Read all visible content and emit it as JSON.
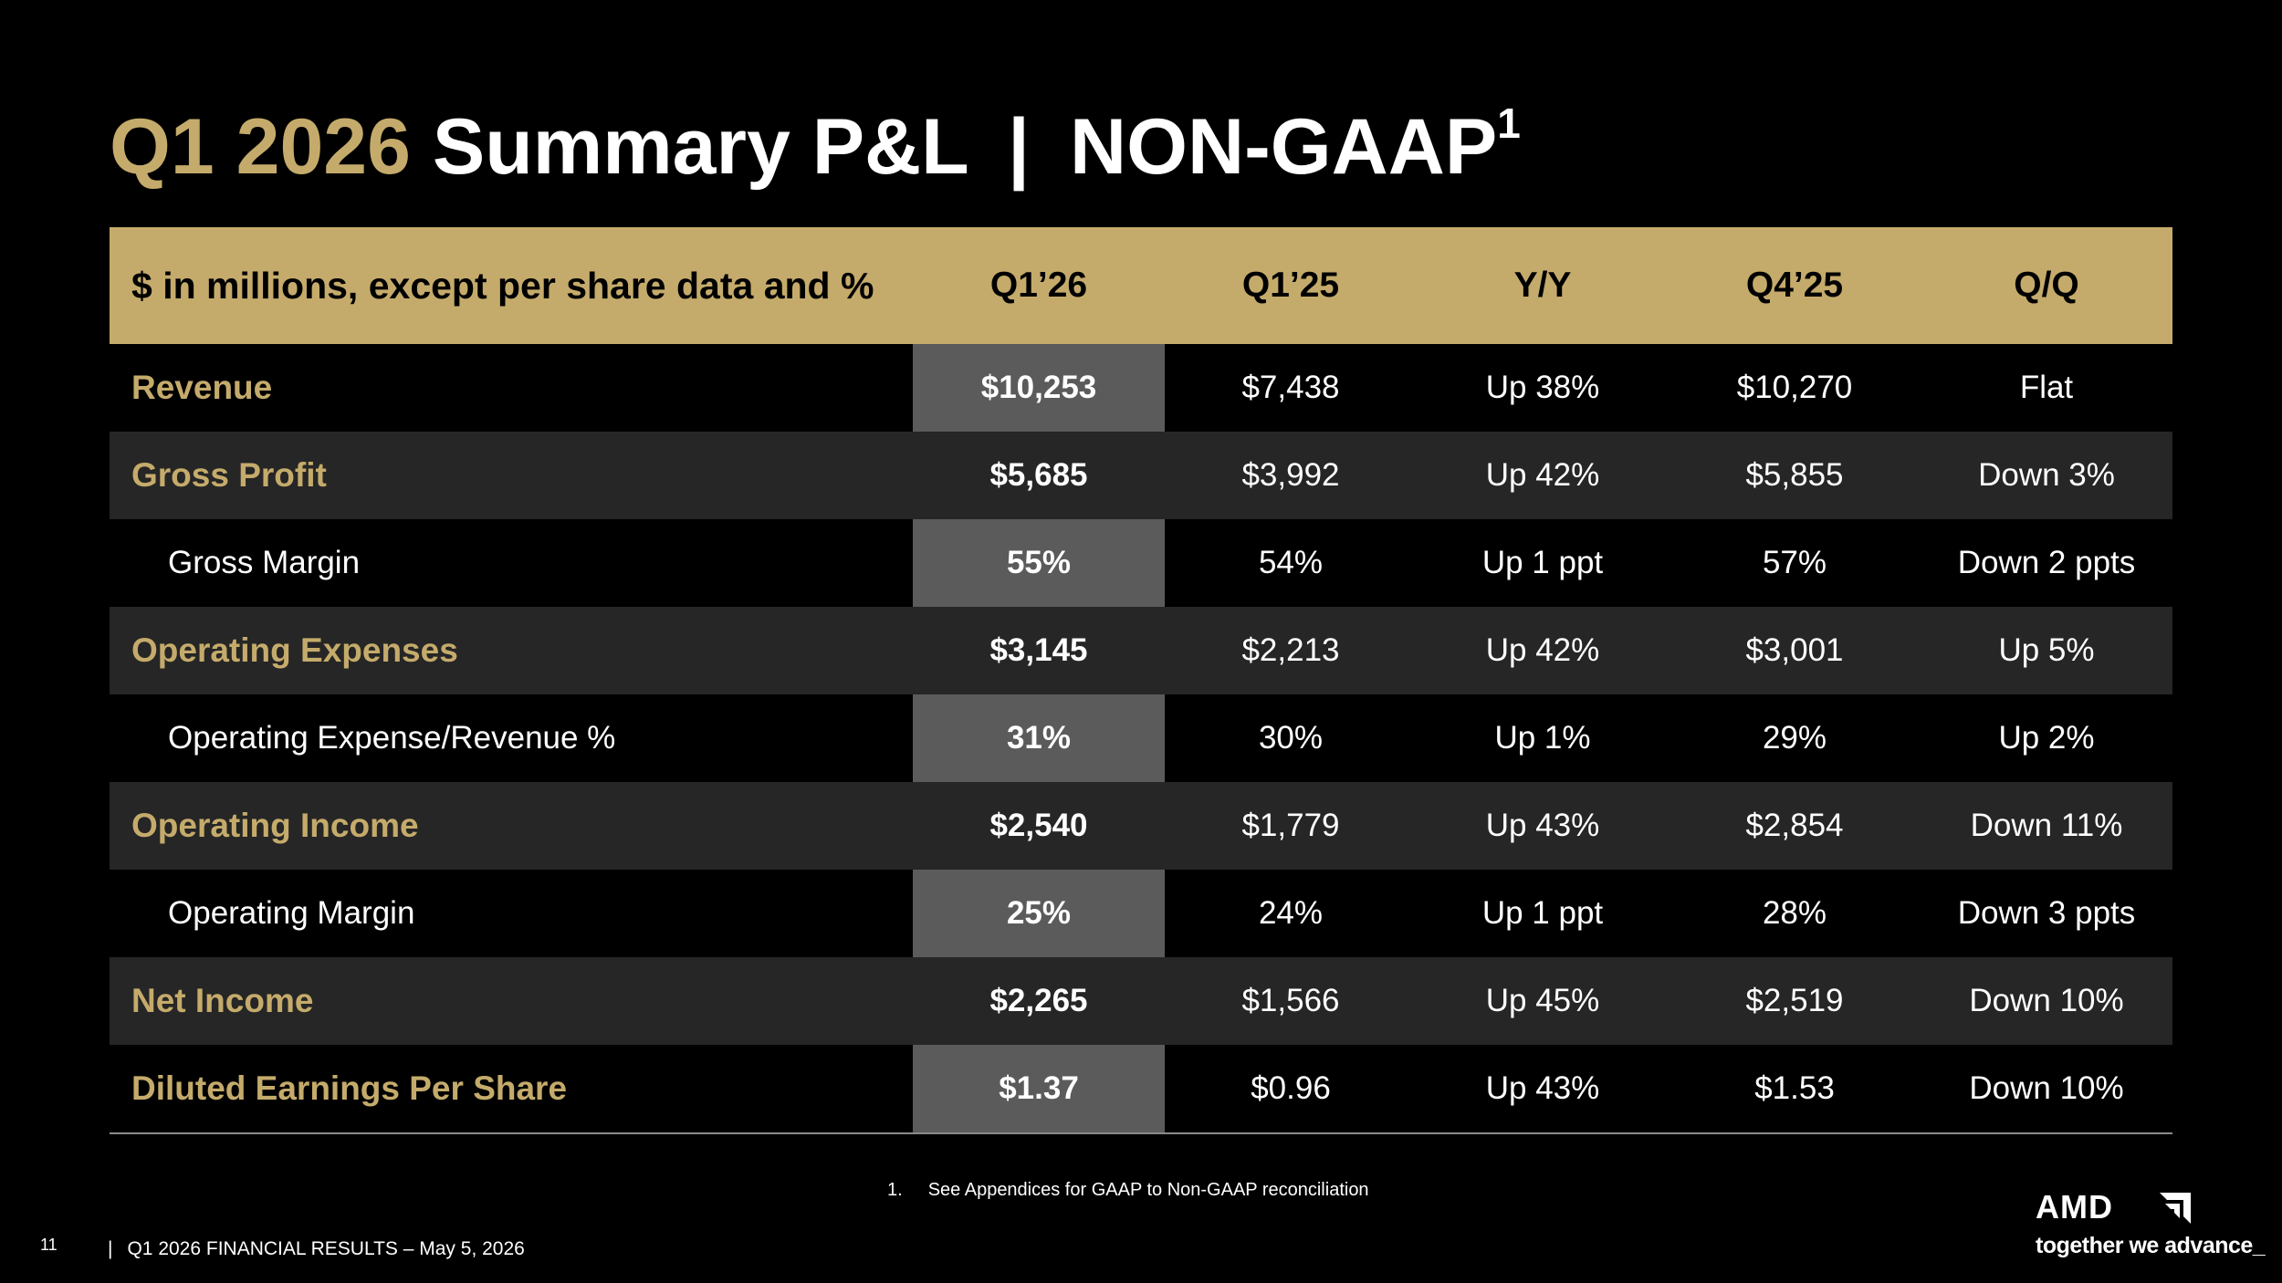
{
  "title": {
    "accent": "Q1 2026",
    "main": "Summary P&L",
    "separator": "|",
    "suffix": "NON-GAAP",
    "superscript": "1"
  },
  "table": {
    "headers": [
      "$ in millions, except per share data and %",
      "Q1’26",
      "Q1’25",
      "Y/Y",
      "Q4’25",
      "Q/Q"
    ],
    "rows": [
      {
        "label": "Revenue",
        "style": "gold",
        "values": [
          "$10,253",
          "$7,438",
          "Up 38%",
          "$10,270",
          "Flat"
        ]
      },
      {
        "label": "Gross Profit",
        "style": "gold",
        "values": [
          "$5,685",
          "$3,992",
          "Up 42%",
          "$5,855",
          "Down 3%"
        ]
      },
      {
        "label": "Gross Margin",
        "style": "sub",
        "values": [
          "55%",
          "54%",
          "Up 1 ppt",
          "57%",
          "Down 2 ppts"
        ]
      },
      {
        "label": "Operating Expenses",
        "style": "gold",
        "values": [
          "$3,145",
          "$2,213",
          "Up 42%",
          "$3,001",
          "Up 5%"
        ]
      },
      {
        "label": "Operating Expense/Revenue %",
        "style": "sub",
        "values": [
          "31%",
          "30%",
          "Up 1%",
          "29%",
          "Up 2%"
        ]
      },
      {
        "label": "Operating Income",
        "style": "gold",
        "values": [
          "$2,540",
          "$1,779",
          "Up 43%",
          "$2,854",
          "Down 11%"
        ]
      },
      {
        "label": "Operating Margin",
        "style": "sub",
        "values": [
          "25%",
          "24%",
          "Up 1 ppt",
          "28%",
          "Down 3 ppts"
        ]
      },
      {
        "label": "Net Income",
        "style": "gold",
        "values": [
          "$2,265",
          "$1,566",
          "Up 45%",
          "$2,519",
          "Down 10%"
        ]
      },
      {
        "label": "Diluted Earnings Per Share",
        "style": "gold",
        "values": [
          "$1.37",
          "$0.96",
          "Up 43%",
          "$1.53",
          "Down 10%"
        ]
      }
    ]
  },
  "footnote": {
    "number": "1.",
    "text": "See Appendices for GAAP to Non-GAAP reconciliation"
  },
  "footer": {
    "page_number": "11",
    "separator": "|",
    "text": "Q1 2026 FINANCIAL RESULTS – May 5, 2026"
  },
  "logo": {
    "wordmark": "AMD",
    "tagline": "together we advance_"
  },
  "colors": {
    "background": "#000000",
    "accent_gold": "#c5ab6b",
    "highlight_column": "#5b5b5b",
    "shaded_row": "#262626"
  }
}
